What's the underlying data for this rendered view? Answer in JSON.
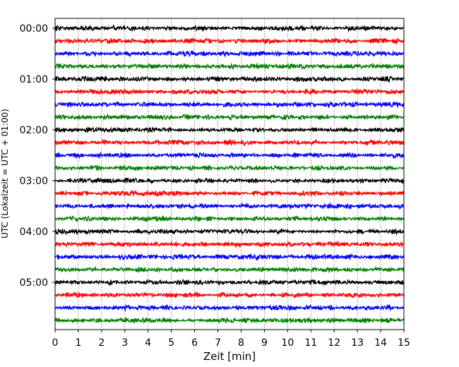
{
  "chart_data": {
    "type": "line",
    "chart_kind": "helicorder (seismogram drum plot)",
    "xlabel": "Zeit  [min]",
    "ylabel": "UTC (Lokalzeit = UTC + 01:00)",
    "xlim": [
      0,
      15
    ],
    "x_ticks": [
      "0",
      "1",
      "2",
      "3",
      "4",
      "5",
      "6",
      "7",
      "8",
      "9",
      "10",
      "11",
      "12",
      "13",
      "14",
      "15"
    ],
    "y_tick_labels": [
      "00:00",
      "01:00",
      "02:00",
      "03:00",
      "04:00",
      "05:00"
    ],
    "grid": "vertical dotted lines at each minute",
    "trace_interval_minutes": 15,
    "trace_count": 24,
    "trace_colors": [
      "#000000",
      "#ff0000",
      "#0000ff",
      "#007f00"
    ],
    "noise_amplitude": "low, roughly constant background noise throughout"
  }
}
